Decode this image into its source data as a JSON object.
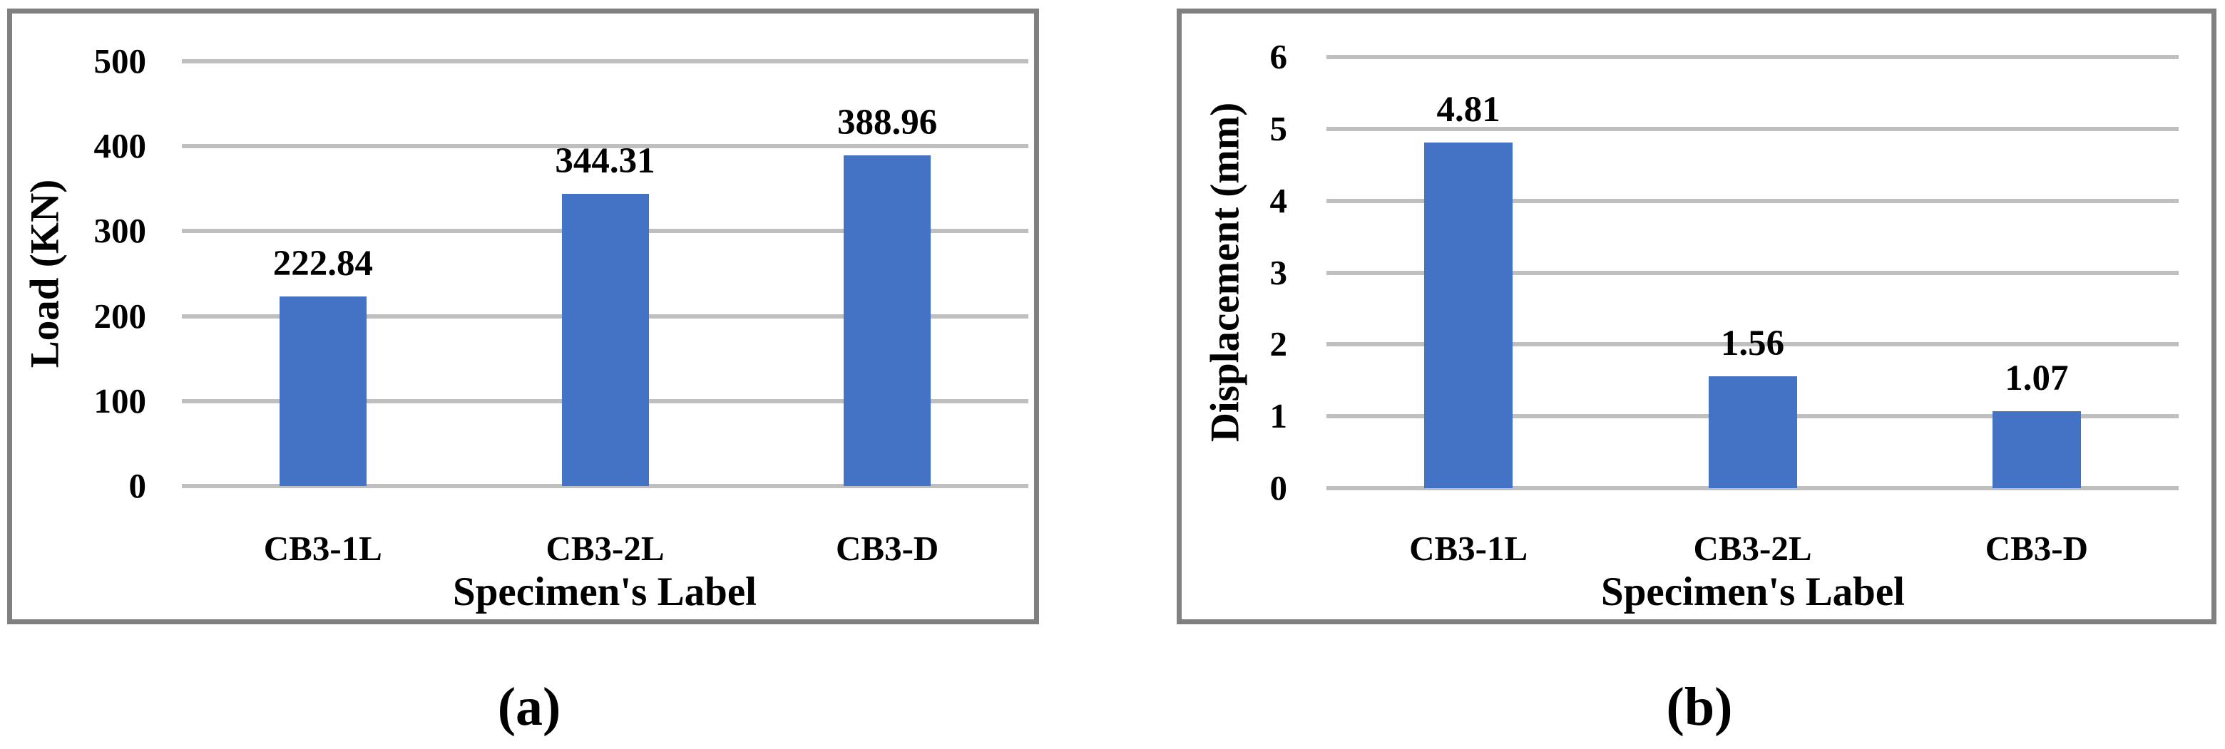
{
  "captions": [
    {
      "text": "(a)"
    },
    {
      "text": "(b)"
    }
  ],
  "colors": {
    "bar": "#4472C4",
    "gridline": "#BFBFBF",
    "panel_border": "#808080",
    "text": "#000000",
    "background": "#FFFFFF"
  },
  "chart_data": [
    {
      "type": "bar",
      "panel": "a",
      "title": "",
      "categories": [
        "CB3-1L",
        "CB3-2L",
        "CB3-D"
      ],
      "values": [
        222.84,
        344.31,
        388.96
      ],
      "data_labels": [
        "222.84",
        "344.31",
        "388.96"
      ],
      "xlabel": "Specimen's Label",
      "ylabel": "Load (KN)",
      "ylim": [
        0,
        500
      ],
      "yticks": [
        0,
        100,
        200,
        300,
        400,
        500
      ],
      "grid": "horizontal",
      "legend": "none",
      "bar_color": "#4472C4"
    },
    {
      "type": "bar",
      "panel": "b",
      "title": "",
      "categories": [
        "CB3-1L",
        "CB3-2L",
        "CB3-D"
      ],
      "values": [
        4.81,
        1.56,
        1.07
      ],
      "data_labels": [
        "4.81",
        "1.56",
        "1.07"
      ],
      "xlabel": "Specimen's Label",
      "ylabel": "Displacement (mm)",
      "ylim": [
        0,
        6
      ],
      "yticks": [
        0,
        1,
        2,
        3,
        4,
        5,
        6
      ],
      "grid": "horizontal",
      "legend": "none",
      "bar_color": "#4472C4"
    }
  ]
}
